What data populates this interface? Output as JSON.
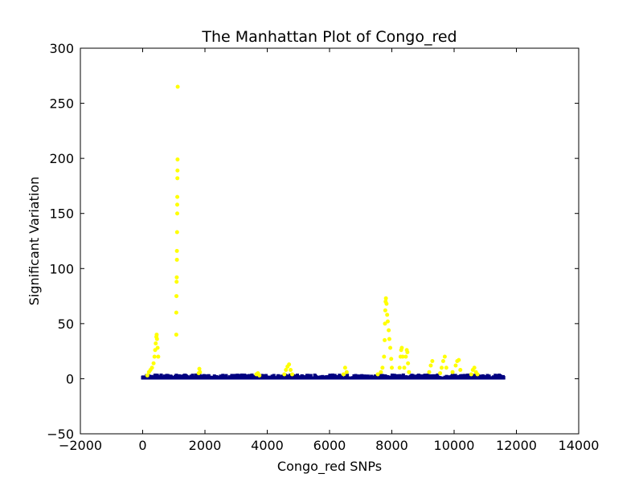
{
  "chart_data": {
    "type": "scatter",
    "title": "The Manhattan Plot of Congo_red",
    "xlabel": "Congo_red SNPs",
    "ylabel": "Significant Variation",
    "xlim": [
      -2000,
      14000
    ],
    "ylim": [
      -50,
      300
    ],
    "xticks": [
      -2000,
      0,
      2000,
      4000,
      6000,
      8000,
      10000,
      12000,
      14000
    ],
    "xtick_labels": [
      "−2000",
      "0",
      "2000",
      "4000",
      "6000",
      "8000",
      "10000",
      "12000",
      "14000"
    ],
    "yticks": [
      -50,
      0,
      50,
      100,
      150,
      200,
      250,
      300
    ],
    "ytick_labels": [
      "−50",
      "0",
      "50",
      "100",
      "150",
      "200",
      "250",
      "300"
    ],
    "grid": false,
    "legend": "none",
    "colors": {
      "significant": "#ffff00",
      "baseline": "#000080"
    },
    "series": [
      {
        "color": "#ffff00",
        "points": [
          [
            150,
            3
          ],
          [
            200,
            6
          ],
          [
            250,
            8
          ],
          [
            300,
            10
          ],
          [
            350,
            14
          ],
          [
            380,
            20
          ],
          [
            400,
            26
          ],
          [
            420,
            32
          ],
          [
            440,
            38
          ],
          [
            450,
            40
          ],
          [
            460,
            36
          ],
          [
            480,
            28
          ],
          [
            500,
            20
          ],
          [
            1080,
            40
          ],
          [
            1080,
            60
          ],
          [
            1085,
            75
          ],
          [
            1090,
            88
          ],
          [
            1095,
            92
          ],
          [
            1100,
            108
          ],
          [
            1100,
            116
          ],
          [
            1105,
            133
          ],
          [
            1110,
            150
          ],
          [
            1110,
            158
          ],
          [
            1112,
            165
          ],
          [
            1115,
            182
          ],
          [
            1118,
            189
          ],
          [
            1120,
            199
          ],
          [
            1125,
            265
          ],
          [
            1800,
            5
          ],
          [
            1820,
            9
          ],
          [
            1840,
            6
          ],
          [
            3650,
            4
          ],
          [
            3700,
            5
          ],
          [
            3750,
            3
          ],
          [
            4550,
            4
          ],
          [
            4600,
            8
          ],
          [
            4650,
            11
          ],
          [
            4700,
            13
          ],
          [
            4750,
            8
          ],
          [
            4800,
            4
          ],
          [
            6450,
            4
          ],
          [
            6500,
            10
          ],
          [
            6550,
            6
          ],
          [
            7550,
            4
          ],
          [
            7650,
            6
          ],
          [
            7700,
            10
          ],
          [
            7750,
            20
          ],
          [
            7770,
            35
          ],
          [
            7780,
            50
          ],
          [
            7790,
            62
          ],
          [
            7800,
            70
          ],
          [
            7810,
            73
          ],
          [
            7830,
            68
          ],
          [
            7850,
            58
          ],
          [
            7870,
            52
          ],
          [
            7900,
            44
          ],
          [
            7920,
            36
          ],
          [
            7950,
            28
          ],
          [
            7980,
            18
          ],
          [
            8000,
            10
          ],
          [
            8250,
            10
          ],
          [
            8280,
            20
          ],
          [
            8300,
            26
          ],
          [
            8320,
            28
          ],
          [
            8350,
            20
          ],
          [
            8400,
            10
          ],
          [
            8450,
            20
          ],
          [
            8480,
            26
          ],
          [
            8500,
            24
          ],
          [
            8520,
            14
          ],
          [
            8550,
            6
          ],
          [
            9200,
            6
          ],
          [
            9250,
            12
          ],
          [
            9300,
            16
          ],
          [
            9550,
            5
          ],
          [
            9600,
            10
          ],
          [
            9650,
            16
          ],
          [
            9700,
            20
          ],
          [
            9750,
            10
          ],
          [
            9950,
            6
          ],
          [
            10050,
            12
          ],
          [
            10100,
            16
          ],
          [
            10150,
            17
          ],
          [
            10200,
            8
          ],
          [
            10550,
            4
          ],
          [
            10600,
            8
          ],
          [
            10650,
            10
          ],
          [
            10700,
            6
          ],
          [
            10750,
            4
          ]
        ]
      },
      {
        "color": "#000080",
        "x_range": [
          0,
          11600
        ],
        "y_range": [
          0,
          4
        ]
      }
    ]
  }
}
